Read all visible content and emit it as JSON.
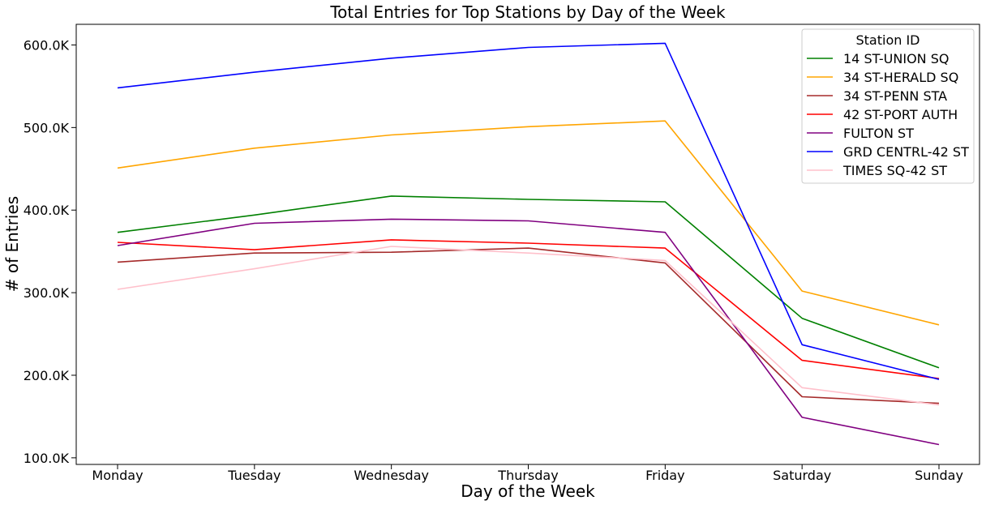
{
  "chart_data": {
    "type": "line",
    "title": "Total Entries for Top Stations by Day of the Week",
    "xlabel": "Day of the Week",
    "ylabel": "# of Entries",
    "categories": [
      "Monday",
      "Tuesday",
      "Wednesday",
      "Thursday",
      "Friday",
      "Saturday",
      "Sunday"
    ],
    "ylim": [
      92000,
      625000
    ],
    "yticks": [
      100000,
      200000,
      300000,
      400000,
      500000,
      600000
    ],
    "ytick_labels": [
      "100.0K",
      "200.0K",
      "300.0K",
      "400.0K",
      "500.0K",
      "600.0K"
    ],
    "grid": false,
    "legend": {
      "title": "Station ID",
      "placement": "top-right"
    },
    "series": [
      {
        "name": "14 ST-UNION SQ",
        "color": "#008000",
        "values": [
          373000,
          394000,
          417000,
          413000,
          410000,
          269000,
          209000
        ]
      },
      {
        "name": "34 ST-HERALD SQ",
        "color": "#FFA500",
        "values": [
          451000,
          475000,
          491000,
          501000,
          508000,
          302000,
          261000
        ]
      },
      {
        "name": "34 ST-PENN STA",
        "color": "#A52A2A",
        "values": [
          337000,
          348000,
          349000,
          354000,
          336000,
          174000,
          166000
        ]
      },
      {
        "name": "42 ST-PORT AUTH",
        "color": "#FF0000",
        "values": [
          361000,
          352000,
          364000,
          360000,
          354000,
          218000,
          196000
        ]
      },
      {
        "name": "FULTON ST",
        "color": "#800080",
        "values": [
          357000,
          384000,
          389000,
          387000,
          373000,
          149000,
          116000
        ]
      },
      {
        "name": "GRD CENTRL-42 ST",
        "color": "#0000FF",
        "values": [
          548000,
          567000,
          584000,
          597000,
          602000,
          237000,
          195000
        ]
      },
      {
        "name": "TIMES SQ-42 ST",
        "color": "#FFC0CB",
        "values": [
          304000,
          329000,
          356000,
          348000,
          339000,
          185000,
          164000
        ]
      }
    ]
  }
}
